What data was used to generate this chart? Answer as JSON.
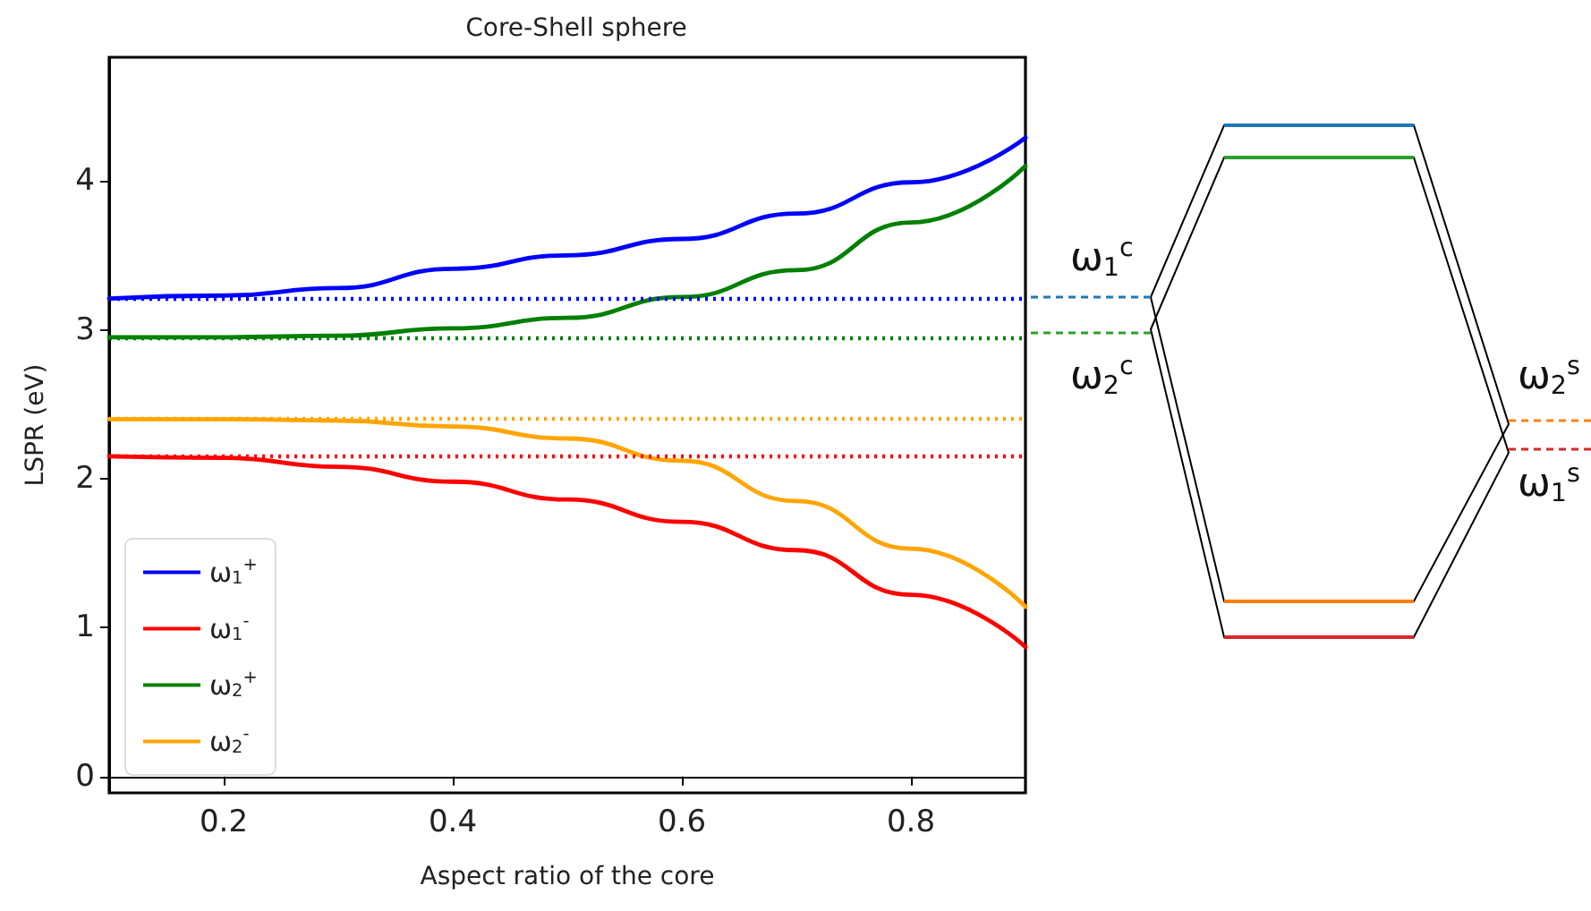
{
  "chart_data": {
    "type": "line",
    "title": "Core-Shell sphere",
    "xlabel": "Aspect ratio of the core",
    "ylabel": "LSPR (eV)",
    "x": [
      0.1,
      0.2,
      0.3,
      0.4,
      0.5,
      0.6,
      0.7,
      0.8,
      0.9
    ],
    "series": [
      {
        "name": "ω$_{1}$$^{+}$",
        "color": "#0000ff",
        "values": [
          3.21,
          3.23,
          3.28,
          3.41,
          3.5,
          3.61,
          3.78,
          3.99,
          4.29
        ]
      },
      {
        "name": "ω$_{1}$$^{-}$",
        "color": "#ff0000",
        "values": [
          2.15,
          2.14,
          2.08,
          1.98,
          1.86,
          1.71,
          1.52,
          1.22,
          0.87
        ]
      },
      {
        "name": "ω$_{2}$$^{+}$",
        "color": "#008000",
        "values": [
          2.95,
          2.95,
          2.96,
          3.01,
          3.08,
          3.22,
          3.4,
          3.72,
          4.1
        ]
      },
      {
        "name": "ω$_{2}$$^{-}$",
        "color": "#ffa500",
        "values": [
          2.4,
          2.4,
          2.39,
          2.35,
          2.27,
          2.12,
          1.85,
          1.53,
          1.14
        ]
      }
    ],
    "xlim": [
      0.1,
      0.9
    ],
    "xticks": [
      0.2,
      0.4,
      0.6,
      0.8
    ],
    "ylim": [
      -0.11,
      4.83
    ],
    "yticks": [
      0,
      1,
      2,
      3,
      4
    ],
    "ref_lines": [
      {
        "axis": "y",
        "value": 3.21,
        "color": "#0000ff",
        "line_style": "dotted"
      },
      {
        "axis": "y",
        "value": 2.95,
        "color": "#008000",
        "line_style": "dotted"
      },
      {
        "axis": "y",
        "value": 2.4,
        "color": "#ffa500",
        "line_style": "dotted"
      },
      {
        "axis": "y",
        "value": 2.15,
        "color": "#ff0000",
        "line_style": "dotted"
      }
    ],
    "annotations": [
      "ω$_{1}$$^{c}$",
      "ω$_{2}$$^{c}$",
      "ω$_{2}$$^{s}$",
      "ω$_{1}$$^{s}$"
    ],
    "legend": "bottom left",
    "marker": "none",
    "line_style": "solid"
  }
}
